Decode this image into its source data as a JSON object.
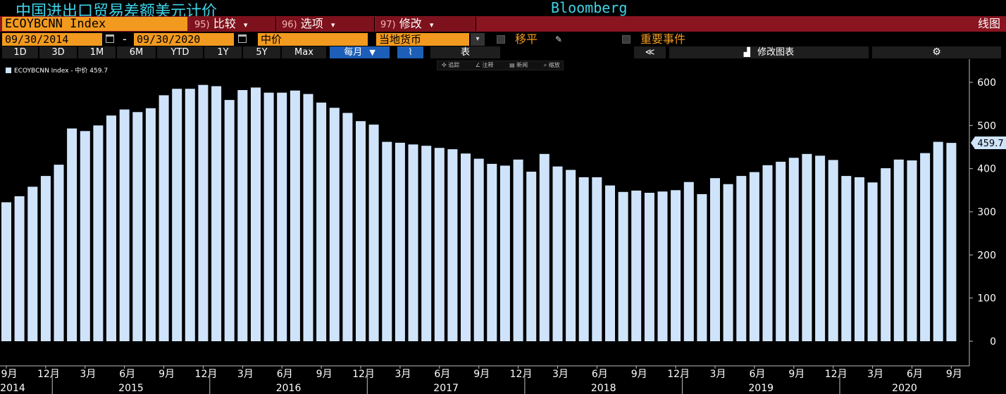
{
  "window": {
    "title": "中国进出口贸易差额美元计价",
    "brand": "Bloomberg"
  },
  "command_bar": {
    "ticker": "ECOYBCNN Index",
    "buttons": [
      {
        "num": "95)",
        "label": "比较"
      },
      {
        "num": "96)",
        "label": "选项"
      },
      {
        "num": "97)",
        "label": "修改"
      }
    ],
    "view_label": "线图"
  },
  "date_bar": {
    "start_date": "09/30/2014",
    "end_date": "09/30/2020",
    "dash": "-",
    "price_type": "中价",
    "currency": "当地货币",
    "shift_label": "移平",
    "events_label": "重要事件"
  },
  "range_bar": {
    "ranges": [
      "1D",
      "3D",
      "1M",
      "6M",
      "YTD",
      "1Y",
      "5Y",
      "Max"
    ],
    "frequency": "每月",
    "table_label": "表",
    "collapse_label": "≪",
    "edit_chart_label": "修改图表"
  },
  "mini_toolbar": {
    "items": [
      "追踪",
      "注释",
      "新闻",
      "缩放"
    ]
  },
  "legend": {
    "text": "ECOYBCNN Index - 中价 459.7"
  },
  "colors": {
    "bar": "#cfe4fa",
    "accent_orange": "#f29a1f",
    "command_red": "#8a1420",
    "title_cyan": "#3fd3e6",
    "active_blue": "#1d5fb8"
  },
  "chart_data": {
    "type": "bar",
    "series": [
      {
        "name": "ECOYBCNN Index",
        "values": [
          322,
          336,
          358,
          383,
          409,
          493,
          487,
          500,
          523,
          537,
          531,
          540,
          570,
          585,
          585,
          594,
          591,
          559,
          582,
          588,
          576,
          576,
          581,
          573,
          553,
          541,
          529,
          510,
          502,
          462,
          460,
          456,
          453,
          448,
          445,
          435,
          423,
          411,
          407,
          421,
          393,
          434,
          405,
          397,
          380,
          380,
          361,
          346,
          349,
          344,
          347,
          350,
          369,
          341,
          378,
          364,
          383,
          392,
          408,
          416,
          425,
          434,
          430,
          420,
          383,
          380,
          368,
          401,
          421,
          419,
          436,
          462,
          459.7
        ]
      }
    ],
    "last_value_label": "459.7",
    "ylim": [
      -60,
      650
    ],
    "yticks": [
      0,
      100,
      200,
      300,
      400,
      500,
      600
    ],
    "month_ticks": [
      "9月",
      "12月",
      "3月",
      "6月",
      "9月",
      "12月",
      "3月",
      "6月",
      "9月",
      "12月",
      "3月",
      "6月",
      "9月",
      "12月",
      "3月",
      "6月",
      "9月",
      "12月",
      "3月",
      "6月",
      "9月",
      "12月",
      "3月",
      "6月",
      "9月"
    ],
    "year_labels": [
      "2014",
      "2015",
      "2016",
      "2017",
      "2018",
      "2019",
      "2020"
    ],
    "grid": false
  }
}
